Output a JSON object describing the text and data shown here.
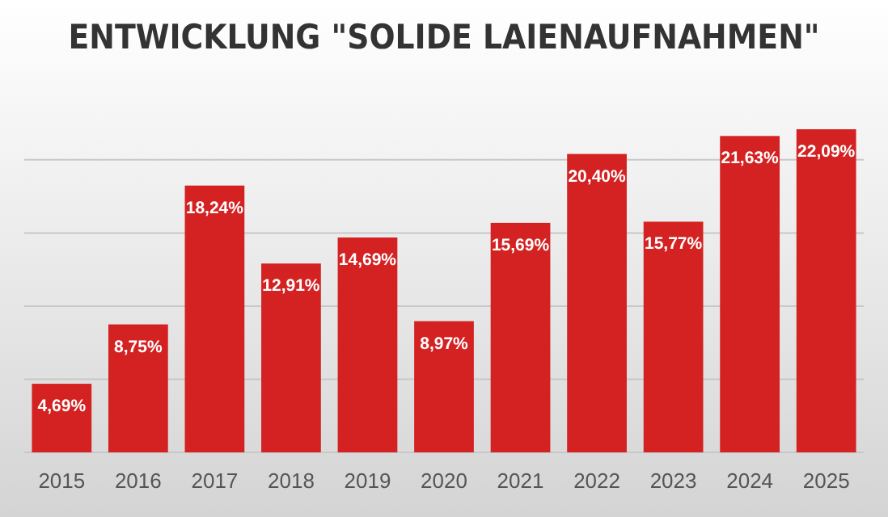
{
  "chart_data": {
    "type": "bar",
    "title": "ENTWICKLUNG \"SOLIDE LAIENAUFNAHMEN\"",
    "categories": [
      "2015",
      "2016",
      "2017",
      "2018",
      "2019",
      "2020",
      "2021",
      "2022",
      "2023",
      "2024",
      "2025"
    ],
    "values": [
      4.69,
      8.75,
      18.24,
      12.91,
      14.69,
      8.97,
      15.69,
      20.4,
      15.77,
      21.63,
      22.09
    ],
    "value_labels": [
      "4,69%",
      "8,75%",
      "18,24%",
      "12,91%",
      "14,69%",
      "8,97%",
      "15,69%",
      "20,40%",
      "15,77%",
      "21,63%",
      "22,09%"
    ],
    "color": "#d42222",
    "yticks": [
      {
        "value": 5,
        "label": null
      },
      {
        "value": 10,
        "label": null
      },
      {
        "value": 15,
        "label": null
      },
      {
        "value": 20,
        "label": null
      }
    ],
    "grid": "y",
    "tick_labels": "x"
  }
}
